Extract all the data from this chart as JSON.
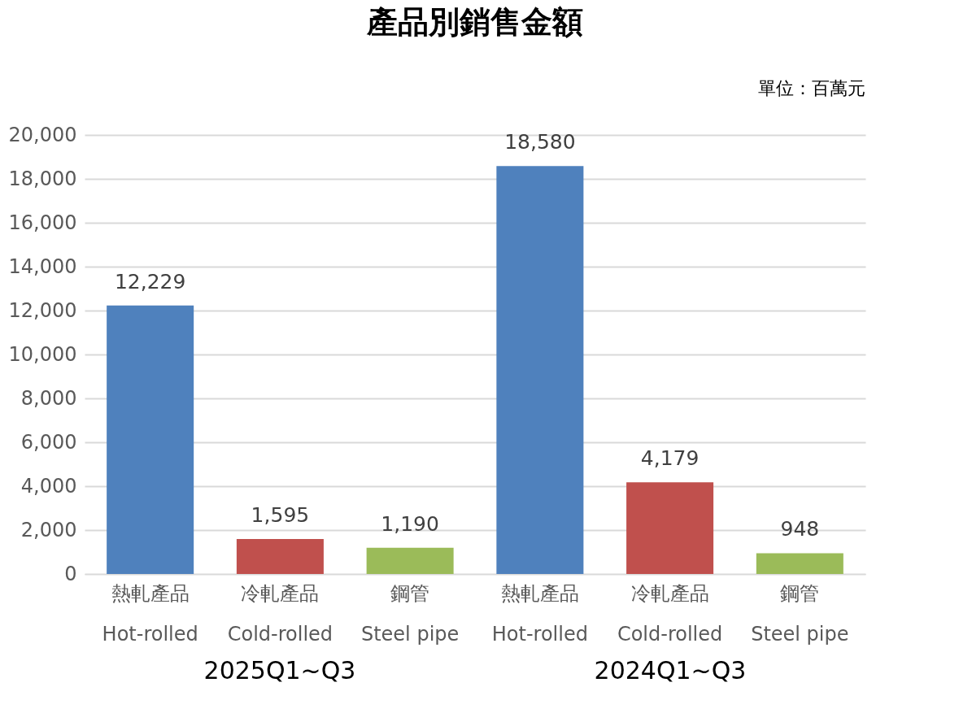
{
  "chart_data": {
    "type": "bar",
    "title": "產品別銷售金額",
    "categories": [
      "熱軋產品\nHot-rolled",
      "冷軋產品\nCold-rolled",
      "鋼管\nSteel pipe",
      "熱軋產品\nHot-rolled",
      "冷軋產品\nCold-rolled",
      "鋼管\nSteel pipe"
    ],
    "values": [
      12229,
      1595,
      1190,
      18580,
      4179,
      948
    ],
    "colors": [
      "#4f81bd",
      "#c0504d",
      "#9bbb59",
      "#4f81bd",
      "#c0504d",
      "#9bbb59"
    ],
    "ylim": [
      0,
      20000
    ],
    "yticks": [
      0,
      {
        "value": 2000,
        "label": "2,000"
      },
      {
        "value": 4000,
        "label": "4,000"
      },
      {
        "value": 6000,
        "label": "6,000"
      },
      {
        "value": 8000,
        "label": "8,000"
      },
      {
        "value": 10000,
        "label": "10,000"
      },
      {
        "value": 12000,
        "label": "12,000"
      },
      {
        "value": 14000,
        "label": "14,000"
      },
      {
        "value": 16000,
        "label": "16,000"
      },
      {
        "value": 18000,
        "label": "18,000"
      },
      {
        "value": 20000,
        "label": "20,000"
      }
    ],
    "value_labels": [
      "12,229",
      "1,595",
      "1,190",
      "18,580",
      "4,179",
      "948"
    ],
    "grid": "y",
    "annotations": [
      "單位：百萬元",
      "2025Q1~Q3",
      "2024Q1~Q3"
    ]
  }
}
